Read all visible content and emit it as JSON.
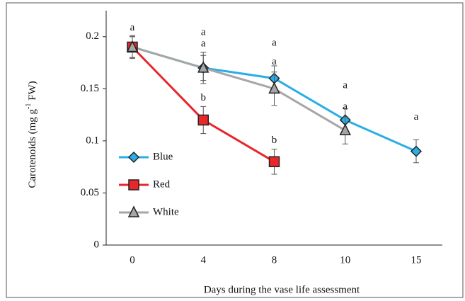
{
  "chart_data": {
    "type": "line",
    "x_label": "Days during the vase life assessment",
    "y_label": [
      "Carotenoids (mg g",
      "-1",
      " FW)"
    ],
    "categories": [
      "0",
      "4",
      "8",
      "10",
      "15"
    ],
    "ylim": [
      0,
      0.225
    ],
    "yticks": [
      0,
      0.05,
      0.1,
      0.15,
      0.2
    ],
    "legend": "left",
    "series": [
      {
        "name": "Blue",
        "color": "#2aaee6",
        "marker": "diamond",
        "values": [
          0.19,
          0.17,
          0.16,
          0.12,
          0.09
        ],
        "errors": [
          0.01,
          0.012,
          0.012,
          0.011,
          0.011
        ],
        "letters": [
          "a",
          "a",
          "a",
          "a",
          "a"
        ]
      },
      {
        "name": "Red",
        "color": "#e8262b",
        "marker": "square",
        "values": [
          0.19,
          0.12,
          0.08,
          null,
          null
        ],
        "errors": [
          0.011,
          0.013,
          0.012,
          null,
          null
        ],
        "letters": [
          null,
          "b",
          "b",
          null,
          null
        ]
      },
      {
        "name": "White",
        "color": "#a6a6a6",
        "marker": "triangle",
        "values": [
          0.19,
          0.17,
          0.15,
          0.11,
          null
        ],
        "errors": [
          0.01,
          0.015,
          0.016,
          0.013,
          null
        ],
        "letters": [
          null,
          "a",
          "a",
          "a",
          null
        ]
      }
    ]
  }
}
